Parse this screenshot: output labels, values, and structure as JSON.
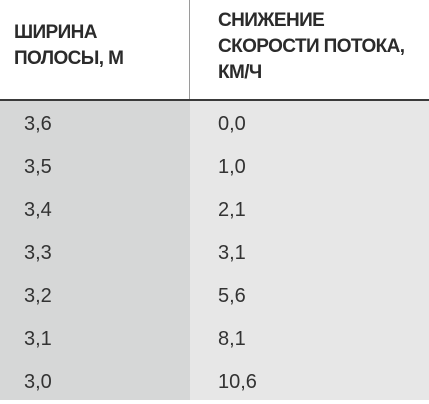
{
  "table": {
    "header": [
      [
        "ШИРИНА",
        "ПОЛОСЫ, М"
      ],
      [
        "СНИЖЕНИЕ",
        "СКОРОСТИ ПОТОКА,",
        "КМ/Ч"
      ]
    ],
    "rows": [
      [
        "3,6",
        "0,0"
      ],
      [
        "3,5",
        "1,0"
      ],
      [
        "3,4",
        "2,1"
      ],
      [
        "3,3",
        "3,1"
      ],
      [
        "3,2",
        "5,6"
      ],
      [
        "3,1",
        "8,1"
      ],
      [
        "3,0",
        "10,6"
      ]
    ]
  }
}
